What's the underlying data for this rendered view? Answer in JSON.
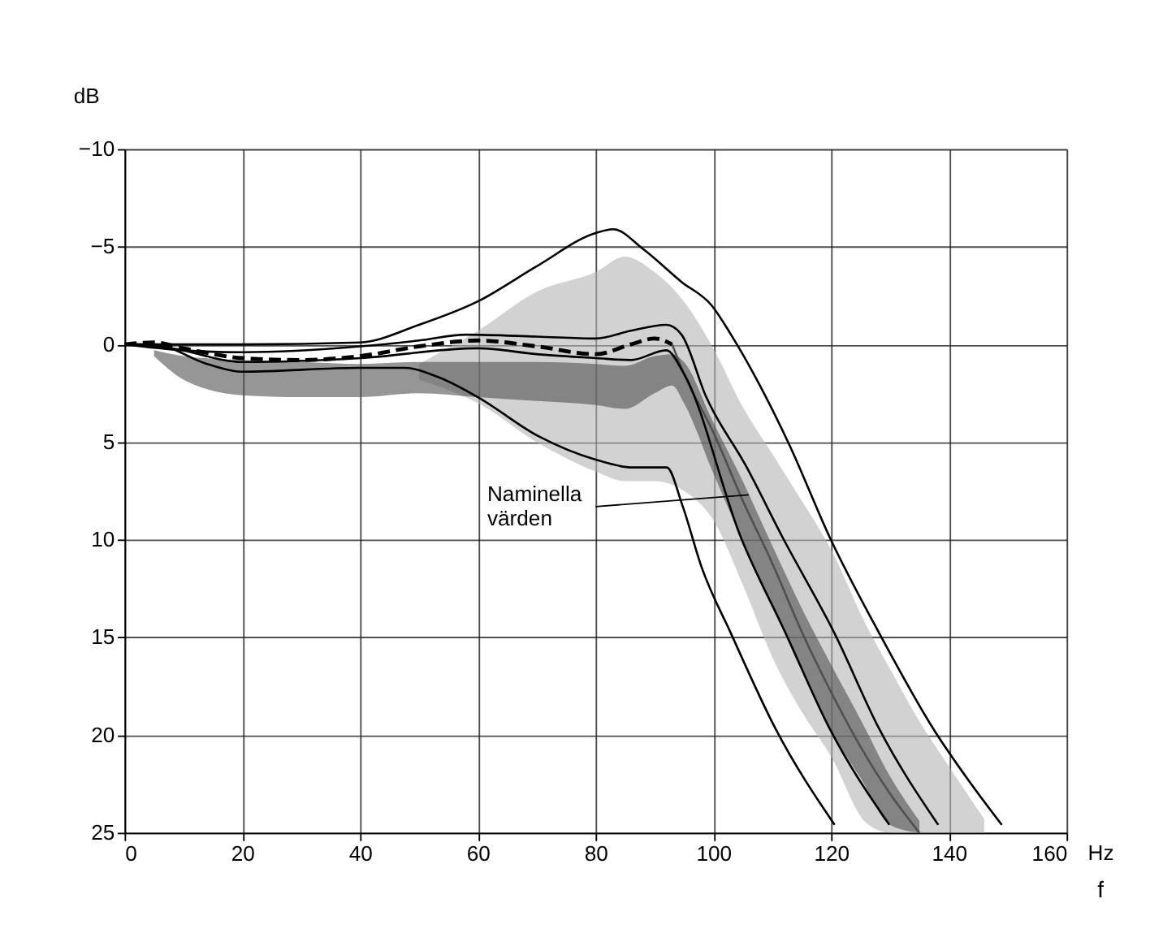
{
  "chart_data": {
    "type": "line",
    "xlabel": "f",
    "ylabel": "dB",
    "xlim": [
      0,
      160
    ],
    "xticks": [
      0,
      20,
      40,
      60,
      80,
      100,
      120,
      140,
      160
    ],
    "ylim": [
      25,
      -10
    ],
    "yticks": [
      -10,
      -5,
      0,
      5,
      10,
      15,
      20,
      25
    ],
    "grid": true,
    "line_style": "solid",
    "annotations": [
      {
        "text": "Naminella värden",
        "x": 106,
        "y": 7.7
      },
      "Hz"
    ],
    "series": [
      {
        "color": "#b4b4b4",
        "x": [
          50,
          60,
          70,
          80,
          85,
          90,
          95,
          100,
          105,
          110,
          115,
          120,
          126,
          130,
          135,
          140,
          146
        ],
        "values": [
          null,
          null,
          null,
          null,
          null,
          null,
          null,
          null,
          null,
          null,
          null,
          null,
          null,
          null,
          null,
          null,
          null
        ],
        "lower": [
          1.0,
          -0.7,
          -2.7,
          -3.7,
          -4.5,
          -3.7,
          -2.2,
          0.2,
          3.2,
          5.6,
          8.0,
          10.5,
          14.4,
          16.6,
          19.3,
          21.6,
          24.3
        ],
        "upper": [
          1.8,
          3,
          5,
          6.5,
          7,
          7,
          7.5,
          9,
          12.3,
          16.0,
          18.8,
          21.1,
          24.5,
          25,
          25,
          25,
          25
        ]
      },
      {
        "color": "#505050",
        "x": [
          5,
          10,
          20,
          30,
          40,
          50,
          60,
          70,
          80,
          85,
          90,
          93,
          95,
          100,
          105,
          110,
          115,
          120,
          125,
          130,
          135
        ],
        "values": [
          null,
          null,
          null,
          null,
          null,
          null,
          null,
          null,
          null,
          null,
          null,
          0.0,
          1.5,
          4.5,
          8.0,
          11.2,
          14.7,
          17.8,
          20.6,
          23.0,
          25.0
        ],
        "lower": [
          0.3,
          0.6,
          0.8,
          0.9,
          1.0,
          0.9,
          0.9,
          0.9,
          1.0,
          1.1,
          0.6,
          0.5,
          0.9,
          4.0,
          7.0,
          10.3,
          13.5,
          16.4,
          19.2,
          22.1,
          24.4
        ],
        "upper": [
          0.6,
          1.8,
          2.6,
          2.7,
          2.7,
          2.5,
          2.7,
          2.9,
          3.1,
          3.3,
          2.5,
          2.1,
          3.0,
          6.6,
          10.1,
          13.4,
          16.7,
          19.8,
          22.2,
          24.6,
          25
        ]
      },
      {
        "color": "#000000",
        "line_style": "dashed",
        "x": [
          0,
          5,
          10,
          20,
          30,
          40,
          50,
          60,
          70,
          80,
          86,
          90,
          93
        ],
        "values": [
          0,
          -0.1,
          0.2,
          0.7,
          0.8,
          0.6,
          0.1,
          -0.2,
          0.1,
          0.5,
          0,
          -0.3,
          0
        ]
      },
      {
        "color": "#000000",
        "x": [
          0,
          10,
          20,
          40,
          50,
          58,
          70,
          80,
          86,
          92,
          94.6,
          98.8,
          105.5,
          111.8,
          120.6,
          128.2,
          138.2
        ],
        "values": [
          0,
          0.3,
          0.4,
          0.1,
          -0.2,
          -0.5,
          -0.4,
          -0.3,
          -0.7,
          -1.0,
          -0.5,
          2.7,
          6.2,
          9.9,
          14.8,
          19.7,
          24.6
        ]
      },
      {
        "color": "#000000",
        "x": [
          0,
          8,
          20,
          40,
          60,
          70,
          80,
          86,
          92,
          95,
          104.7,
          112.3,
          119.8,
          129.9
        ],
        "values": [
          0,
          0.2,
          0.9,
          0.7,
          0.2,
          0.5,
          0.7,
          0.8,
          0.3,
          1.5,
          9.9,
          14.8,
          19.7,
          24.6
        ]
      },
      {
        "color": "#000000",
        "x": [
          0,
          20,
          40,
          50,
          60,
          70,
          80,
          83,
          88,
          94.6,
          99.7,
          103,
          107.2,
          113,
          119.8,
          128.2,
          137.4,
          143.3,
          149
        ],
        "values": [
          0,
          0,
          -0.1,
          -1.0,
          -2.2,
          -4.0,
          -5.7,
          -5.9,
          -4.9,
          -3.2,
          -2.0,
          -0.5,
          1.7,
          5.2,
          9.9,
          14.8,
          19.7,
          22.3,
          24.6
        ]
      },
      {
        "color": "#000000",
        "x": [
          0,
          5,
          14,
          20,
          40,
          47.5,
          53.5,
          60,
          70.3,
          80,
          86.3,
          92.1,
          94.7,
          98,
          103,
          110.6,
          120.6
        ],
        "values": [
          0,
          0,
          1.0,
          1.4,
          1.2,
          1.2,
          1.7,
          2.7,
          4.7,
          5.9,
          6.3,
          6.3,
          8.2,
          11.4,
          14.8,
          19.7,
          24.6
        ]
      }
    ]
  }
}
